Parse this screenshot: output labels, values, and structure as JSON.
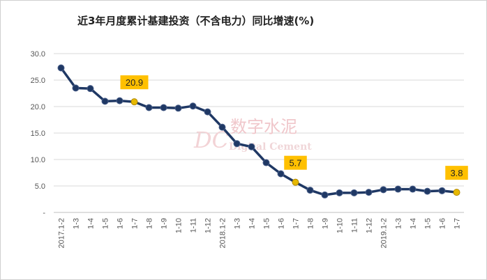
{
  "chart_data": {
    "type": "line",
    "title": "近3年月度累计基建投资（不含电力）同比增速(%)",
    "xlabel": "",
    "ylabel": "",
    "ylim": [
      0,
      30
    ],
    "yticks": [
      "-",
      "5.0",
      "10.0",
      "15.0",
      "20.0",
      "25.0",
      "30.0"
    ],
    "grid": true,
    "categories": [
      "2017.1-2",
      "1-3",
      "1-4",
      "1-5",
      "1-6",
      "1-7",
      "1-8",
      "1-9",
      "1-10",
      "1-11",
      "1-12",
      "2018.1-2",
      "1-3",
      "1-4",
      "1-5",
      "1-6",
      "1-7",
      "1-8",
      "1-9",
      "1-10",
      "1-11",
      "1-12",
      "2019.1-2",
      "1-3",
      "1-4",
      "1-5",
      "1-6",
      "1-7"
    ],
    "values": [
      27.3,
      23.5,
      23.4,
      21.0,
      21.1,
      20.9,
      19.8,
      19.8,
      19.7,
      20.1,
      19.0,
      16.1,
      13.0,
      12.4,
      9.4,
      7.3,
      5.7,
      4.2,
      3.3,
      3.7,
      3.7,
      3.8,
      4.3,
      4.4,
      4.4,
      4.0,
      4.1,
      3.8
    ],
    "highlights": [
      {
        "index": 5,
        "label": "20.9"
      },
      {
        "index": 16,
        "label": "5.7"
      },
      {
        "index": 27,
        "label": "3.8"
      }
    ],
    "colors": {
      "line": "#1f3864",
      "marker": "#1f3864",
      "highlight_marker": "#e6b800",
      "label_box": "#ffc000",
      "grid": "#d9d9d9"
    }
  },
  "watermark": {
    "logo": "DC",
    "name": "数字水泥",
    "english": "Digital Cement"
  }
}
